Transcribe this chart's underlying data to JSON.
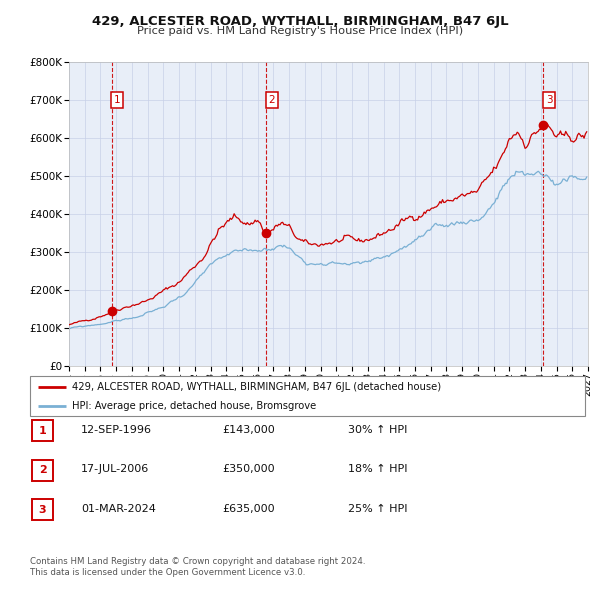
{
  "title": "429, ALCESTER ROAD, WYTHALL, BIRMINGHAM, B47 6JL",
  "subtitle": "Price paid vs. HM Land Registry's House Price Index (HPI)",
  "legend_line1": "429, ALCESTER ROAD, WYTHALL, BIRMINGHAM, B47 6JL (detached house)",
  "legend_line2": "HPI: Average price, detached house, Bromsgrove",
  "sale_color": "#cc0000",
  "hpi_color": "#7ab0d4",
  "background_color": "#e8eef8",
  "ylim": [
    0,
    800000
  ],
  "yticks": [
    0,
    100000,
    200000,
    300000,
    400000,
    500000,
    600000,
    700000,
    800000
  ],
  "ytick_labels": [
    "£0",
    "£100K",
    "£200K",
    "£300K",
    "£400K",
    "£500K",
    "£600K",
    "£700K",
    "£800K"
  ],
  "xmin": 1994.0,
  "xmax": 2027.0,
  "xticks": [
    1994,
    1995,
    1996,
    1997,
    1998,
    1999,
    2000,
    2001,
    2002,
    2003,
    2004,
    2005,
    2006,
    2007,
    2008,
    2009,
    2010,
    2011,
    2012,
    2013,
    2014,
    2015,
    2016,
    2017,
    2018,
    2019,
    2020,
    2021,
    2022,
    2023,
    2024,
    2025,
    2026,
    2027
  ],
  "sales": [
    {
      "year": 1996.71,
      "price": 143000,
      "label": "1"
    },
    {
      "year": 2006.54,
      "price": 350000,
      "label": "2"
    },
    {
      "year": 2024.17,
      "price": 635000,
      "label": "3"
    }
  ],
  "sale_annotations": [
    {
      "label": "1",
      "date": "12-SEP-1996",
      "price": "£143,000",
      "pct": "30% ↑ HPI"
    },
    {
      "label": "2",
      "date": "17-JUL-2006",
      "price": "£350,000",
      "pct": "18% ↑ HPI"
    },
    {
      "label": "3",
      "date": "01-MAR-2024",
      "price": "£635,000",
      "pct": "25% ↑ HPI"
    }
  ],
  "footer_line1": "Contains HM Land Registry data © Crown copyright and database right 2024.",
  "footer_line2": "This data is licensed under the Open Government Licence v3.0.",
  "dashed_vline_color": "#cc0000",
  "grid_color": "#c8d0e8"
}
